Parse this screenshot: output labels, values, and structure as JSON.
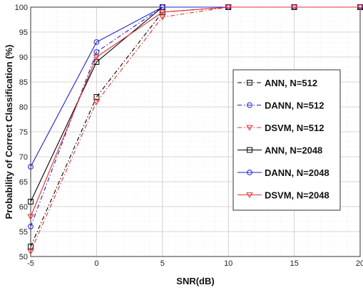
{
  "chart_data": {
    "type": "line",
    "title": "",
    "xlabel": "SNR(dB)",
    "ylabel": "Probability of Correct Classification (%)",
    "xlim": [
      -5,
      20
    ],
    "ylim": [
      50,
      100
    ],
    "xticks": [
      -5,
      0,
      5,
      10,
      15,
      20
    ],
    "yticks": [
      50,
      55,
      60,
      65,
      70,
      75,
      80,
      85,
      90,
      95,
      100
    ],
    "x": [
      -5,
      0,
      5,
      10,
      15,
      20
    ],
    "grid": true,
    "legend_position": "center-right",
    "series": [
      {
        "name": "ANN, N=512",
        "values": [
          52,
          82,
          99,
          100,
          100,
          100
        ],
        "color": "#000000",
        "dash": "dashdot",
        "marker": "square"
      },
      {
        "name": "DANN, N=512",
        "values": [
          56,
          91,
          100,
          100,
          100,
          100
        ],
        "color": "#1f1fd0",
        "dash": "dashdot",
        "marker": "circle"
      },
      {
        "name": "DSVM, N=512",
        "values": [
          51,
          81,
          98,
          100,
          100,
          100
        ],
        "color": "#e03030",
        "dash": "dashdot",
        "marker": "triangle"
      },
      {
        "name": "ANN, N=2048",
        "values": [
          61,
          89,
          100,
          100,
          100,
          100
        ],
        "color": "#000000",
        "dash": "solid",
        "marker": "square"
      },
      {
        "name": "DANN, N=2048",
        "values": [
          68,
          93,
          100,
          100,
          100,
          100
        ],
        "color": "#1f1fd0",
        "dash": "solid",
        "marker": "circle"
      },
      {
        "name": "DSVM, N=2048",
        "values": [
          58,
          90,
          99,
          100,
          100,
          100
        ],
        "color": "#e03030",
        "dash": "solid",
        "marker": "triangle"
      }
    ]
  }
}
